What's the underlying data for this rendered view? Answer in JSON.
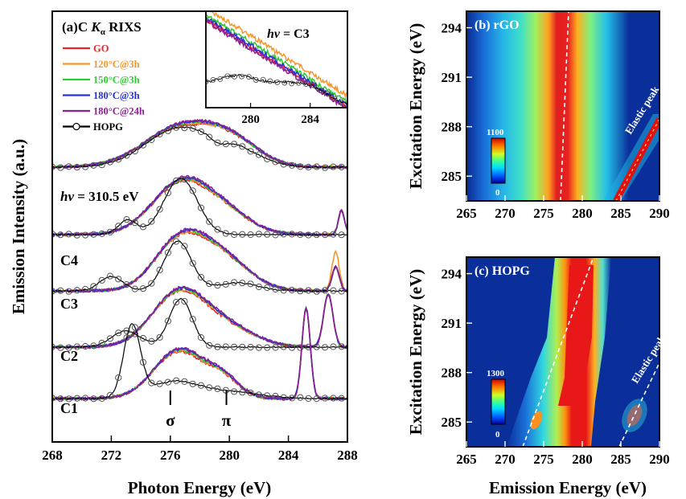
{
  "chart_data": [
    {
      "type": "line",
      "panel_label": "(a)",
      "title_prefix": "C ",
      "title_k": "K",
      "title_alpha": "α",
      "title_suffix": " RIXS",
      "xlabel": "Photon Energy (eV)",
      "ylabel": "Emission Intensity (a.u.)",
      "xlim": [
        268,
        288
      ],
      "x_ticks": [
        "268",
        "272",
        "276",
        "280",
        "284",
        "288"
      ],
      "hv_label_italic": "hv",
      "hv_label_value": " = 310.5 eV",
      "offset_labels": [
        "C4",
        "C3",
        "C2",
        "C1"
      ],
      "peak_markers": [
        {
          "label": "σ",
          "x": 276.0
        },
        {
          "label": "π",
          "x": 279.8
        }
      ],
      "series": [
        {
          "name": "GO",
          "color": "#e8242a"
        },
        {
          "name": "120°C@3h",
          "color": "#f5962d"
        },
        {
          "name": "150°C@3h",
          "color": "#2ecb2e"
        },
        {
          "name": "180°C@3h",
          "color": "#2431d8"
        },
        {
          "name": "180°C@24h",
          "color": "#8c1e96"
        },
        {
          "name": "HOPG",
          "color": "#000000"
        }
      ],
      "inset": {
        "label_italic": "hv",
        "label_value": " = C3",
        "x_ticks": [
          "280",
          "284"
        ],
        "xlim": [
          277,
          286.5
        ]
      }
    },
    {
      "type": "heatmap",
      "panel_label": "(b) rGO",
      "xlabel": "",
      "ylabel": "Excitation Energy (eV)",
      "xlim": [
        265,
        290
      ],
      "ylim": [
        283.5,
        295
      ],
      "x_ticks": [
        "265",
        "270",
        "275",
        "280",
        "285",
        "290"
      ],
      "y_ticks": [
        "285",
        "288",
        "291",
        "294"
      ],
      "colorbar_max": "1100",
      "colorbar_min": "0",
      "annotation": "Elastic peak"
    },
    {
      "type": "heatmap",
      "panel_label": "(c) HOPG",
      "xlabel": "Emission Energy (eV)",
      "ylabel": "Excitation Energy (eV)",
      "xlim": [
        265,
        290
      ],
      "ylim": [
        283.5,
        295
      ],
      "x_ticks": [
        "265",
        "270",
        "275",
        "280",
        "285",
        "290"
      ],
      "y_ticks": [
        "285",
        "288",
        "291",
        "294"
      ],
      "colorbar_max": "1300",
      "colorbar_min": "0",
      "annotation": "Elastic peak"
    }
  ],
  "colors": {
    "map_background": "#0a2f9a",
    "jet_low": "#0000aa",
    "jet_high": "#e00000"
  }
}
